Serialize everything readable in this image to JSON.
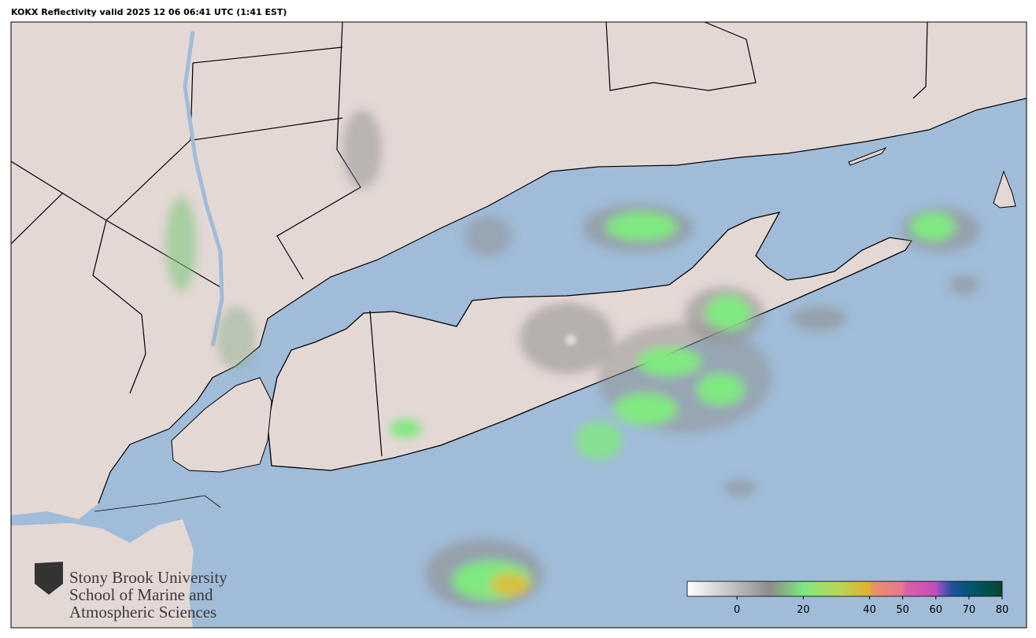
{
  "title": "KOKX Reflectivity valid 2025 12 06 06:41 UTC (1:41 EST)",
  "logo": {
    "lines": [
      "Stony Brook University",
      "School of Marine and",
      "Atmospheric Sciences"
    ]
  },
  "colorbar": {
    "lim": [
      -15,
      80
    ],
    "ticks": [
      0,
      20,
      40,
      50,
      60,
      70,
      80
    ],
    "stops": [
      {
        "value": -15,
        "color": "#ffffff"
      },
      {
        "value": 10,
        "color": "#8c8c8c"
      },
      {
        "value": 20,
        "color": "#7ee87e"
      },
      {
        "value": 30,
        "color": "#b5d65c"
      },
      {
        "value": 40,
        "color": "#e0b030"
      },
      {
        "value": 41,
        "color": "#e8906a"
      },
      {
        "value": 50,
        "color": "#e47890"
      },
      {
        "value": 51,
        "color": "#d860a8"
      },
      {
        "value": 60,
        "color": "#c050b8"
      },
      {
        "value": 61,
        "color": "#9050c0"
      },
      {
        "value": 65,
        "color": "#2050a0"
      },
      {
        "value": 70,
        "color": "#005870"
      },
      {
        "value": 80,
        "color": "#004830"
      }
    ]
  }
}
